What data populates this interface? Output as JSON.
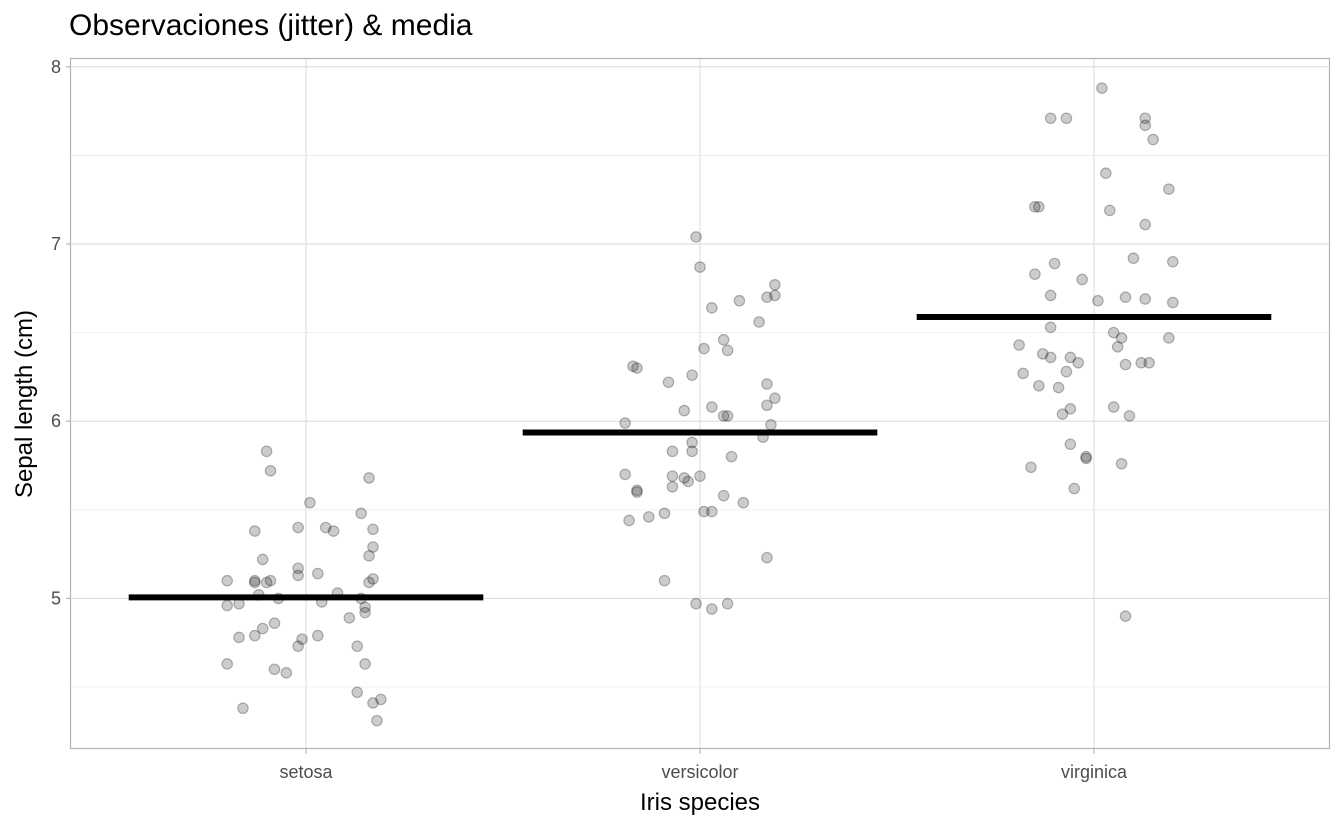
{
  "chart_data": {
    "type": "scatter",
    "title": "Observaciones (jitter) & media",
    "xlabel": "Iris species",
    "ylabel": "Sepal length (cm)",
    "categories": [
      "setosa",
      "versicolor",
      "virginica"
    ],
    "ylim": [
      4.15,
      8.05
    ],
    "yticks": [
      "5",
      "6",
      "7",
      "8"
    ],
    "ytick_values": [
      5,
      6,
      7,
      8
    ],
    "y_minor_gridlines": [
      4.5,
      5.5,
      6.5,
      7.5
    ],
    "grid": true,
    "jitter_width": 0.2,
    "colors": {
      "points": "#000000",
      "mean": "#000000",
      "grid": "#dedede",
      "border": "#b3b3b3"
    },
    "series": [
      {
        "name": "observations",
        "points": [
          {
            "category": "setosa",
            "jitter": -0.2,
            "y": 5.1
          },
          {
            "category": "setosa",
            "jitter": 0.17,
            "y": 5.11
          },
          {
            "category": "setosa",
            "jitter": -0.13,
            "y": 5.1
          },
          {
            "category": "setosa",
            "jitter": -0.09,
            "y": 5.1
          },
          {
            "category": "setosa",
            "jitter": -0.02,
            "y": 5.17
          },
          {
            "category": "setosa",
            "jitter": -0.12,
            "y": 5.02
          },
          {
            "category": "setosa",
            "jitter": -0.17,
            "y": 4.97
          },
          {
            "category": "setosa",
            "jitter": 0.04,
            "y": 4.98
          },
          {
            "category": "setosa",
            "jitter": 0.08,
            "y": 5.03
          },
          {
            "category": "setosa",
            "jitter": 0.14,
            "y": 5.0
          },
          {
            "category": "setosa",
            "jitter": 0.15,
            "y": 4.92
          },
          {
            "category": "setosa",
            "jitter": 0.15,
            "y": 4.95
          },
          {
            "category": "setosa",
            "jitter": 0.16,
            "y": 5.09
          },
          {
            "category": "setosa",
            "jitter": -0.07,
            "y": 5.0
          },
          {
            "category": "setosa",
            "jitter": 0.11,
            "y": 4.89
          },
          {
            "category": "setosa",
            "jitter": -0.08,
            "y": 4.86
          },
          {
            "category": "setosa",
            "jitter": -0.11,
            "y": 4.83
          },
          {
            "category": "setosa",
            "jitter": -0.13,
            "y": 4.79
          },
          {
            "category": "setosa",
            "jitter": -0.17,
            "y": 4.78
          },
          {
            "category": "setosa",
            "jitter": 0.03,
            "y": 4.79
          },
          {
            "category": "setosa",
            "jitter": -0.01,
            "y": 4.77
          },
          {
            "category": "setosa",
            "jitter": -0.02,
            "y": 4.73
          },
          {
            "category": "setosa",
            "jitter": 0.13,
            "y": 4.73
          },
          {
            "category": "setosa",
            "jitter": -0.2,
            "y": 4.96
          },
          {
            "category": "setosa",
            "jitter": -0.2,
            "y": 4.63
          },
          {
            "category": "setosa",
            "jitter": 0.15,
            "y": 4.63
          },
          {
            "category": "setosa",
            "jitter": -0.08,
            "y": 4.6
          },
          {
            "category": "setosa",
            "jitter": -0.05,
            "y": 4.58
          },
          {
            "category": "setosa",
            "jitter": 0.13,
            "y": 4.47
          },
          {
            "category": "setosa",
            "jitter": 0.17,
            "y": 4.41
          },
          {
            "category": "setosa",
            "jitter": 0.19,
            "y": 4.43
          },
          {
            "category": "setosa",
            "jitter": -0.16,
            "y": 4.38
          },
          {
            "category": "setosa",
            "jitter": 0.18,
            "y": 4.31
          },
          {
            "category": "setosa",
            "jitter": -0.13,
            "y": 5.38
          },
          {
            "category": "setosa",
            "jitter": -0.02,
            "y": 5.4
          },
          {
            "category": "setosa",
            "jitter": 0.05,
            "y": 5.4
          },
          {
            "category": "setosa",
            "jitter": 0.07,
            "y": 5.38
          },
          {
            "category": "setosa",
            "jitter": 0.17,
            "y": 5.39
          },
          {
            "category": "setosa",
            "jitter": 0.01,
            "y": 5.54
          },
          {
            "category": "setosa",
            "jitter": 0.14,
            "y": 5.48
          },
          {
            "category": "setosa",
            "jitter": -0.11,
            "y": 5.22
          },
          {
            "category": "setosa",
            "jitter": 0.17,
            "y": 5.29
          },
          {
            "category": "setosa",
            "jitter": 0.16,
            "y": 5.24
          },
          {
            "category": "setosa",
            "jitter": -0.1,
            "y": 5.83
          },
          {
            "category": "setosa",
            "jitter": -0.09,
            "y": 5.72
          },
          {
            "category": "setosa",
            "jitter": 0.16,
            "y": 5.68
          },
          {
            "category": "setosa",
            "jitter": -0.02,
            "y": 5.13
          },
          {
            "category": "setosa",
            "jitter": 0.03,
            "y": 5.14
          },
          {
            "category": "setosa",
            "jitter": -0.13,
            "y": 5.09
          },
          {
            "category": "setosa",
            "jitter": -0.1,
            "y": 5.09
          },
          {
            "category": "versicolor",
            "jitter": -0.01,
            "y": 7.04
          },
          {
            "category": "versicolor",
            "jitter": 0.0,
            "y": 6.87
          },
          {
            "category": "versicolor",
            "jitter": 0.03,
            "y": 6.64
          },
          {
            "category": "versicolor",
            "jitter": 0.1,
            "y": 6.68
          },
          {
            "category": "versicolor",
            "jitter": 0.17,
            "y": 6.7
          },
          {
            "category": "versicolor",
            "jitter": 0.19,
            "y": 6.77
          },
          {
            "category": "versicolor",
            "jitter": 0.19,
            "y": 6.71
          },
          {
            "category": "versicolor",
            "jitter": 0.15,
            "y": 6.56
          },
          {
            "category": "versicolor",
            "jitter": 0.06,
            "y": 6.46
          },
          {
            "category": "versicolor",
            "jitter": 0.07,
            "y": 6.4
          },
          {
            "category": "versicolor",
            "jitter": 0.01,
            "y": 6.41
          },
          {
            "category": "versicolor",
            "jitter": -0.02,
            "y": 6.26
          },
          {
            "category": "versicolor",
            "jitter": -0.08,
            "y": 6.22
          },
          {
            "category": "versicolor",
            "jitter": -0.17,
            "y": 6.31
          },
          {
            "category": "versicolor",
            "jitter": -0.16,
            "y": 6.3
          },
          {
            "category": "versicolor",
            "jitter": 0.17,
            "y": 6.21
          },
          {
            "category": "versicolor",
            "jitter": 0.19,
            "y": 6.13
          },
          {
            "category": "versicolor",
            "jitter": 0.17,
            "y": 6.09
          },
          {
            "category": "versicolor",
            "jitter": 0.03,
            "y": 6.08
          },
          {
            "category": "versicolor",
            "jitter": 0.06,
            "y": 6.03
          },
          {
            "category": "versicolor",
            "jitter": 0.07,
            "y": 6.03
          },
          {
            "category": "versicolor",
            "jitter": -0.04,
            "y": 6.06
          },
          {
            "category": "versicolor",
            "jitter": -0.19,
            "y": 5.99
          },
          {
            "category": "versicolor",
            "jitter": 0.18,
            "y": 5.98
          },
          {
            "category": "versicolor",
            "jitter": 0.16,
            "y": 5.91
          },
          {
            "category": "versicolor",
            "jitter": -0.02,
            "y": 5.88
          },
          {
            "category": "versicolor",
            "jitter": -0.02,
            "y": 5.83
          },
          {
            "category": "versicolor",
            "jitter": -0.07,
            "y": 5.83
          },
          {
            "category": "versicolor",
            "jitter": 0.08,
            "y": 5.8
          },
          {
            "category": "versicolor",
            "jitter": -0.19,
            "y": 5.7
          },
          {
            "category": "versicolor",
            "jitter": -0.07,
            "y": 5.69
          },
          {
            "category": "versicolor",
            "jitter": -0.04,
            "y": 5.68
          },
          {
            "category": "versicolor",
            "jitter": -0.03,
            "y": 5.66
          },
          {
            "category": "versicolor",
            "jitter": 0.0,
            "y": 5.69
          },
          {
            "category": "versicolor",
            "jitter": -0.07,
            "y": 5.63
          },
          {
            "category": "versicolor",
            "jitter": -0.16,
            "y": 5.61
          },
          {
            "category": "versicolor",
            "jitter": -0.16,
            "y": 5.6
          },
          {
            "category": "versicolor",
            "jitter": 0.06,
            "y": 5.58
          },
          {
            "category": "versicolor",
            "jitter": 0.11,
            "y": 5.54
          },
          {
            "category": "versicolor",
            "jitter": -0.09,
            "y": 5.48
          },
          {
            "category": "versicolor",
            "jitter": -0.13,
            "y": 5.46
          },
          {
            "category": "versicolor",
            "jitter": -0.18,
            "y": 5.44
          },
          {
            "category": "versicolor",
            "jitter": 0.01,
            "y": 5.49
          },
          {
            "category": "versicolor",
            "jitter": 0.03,
            "y": 5.49
          },
          {
            "category": "versicolor",
            "jitter": 0.17,
            "y": 5.23
          },
          {
            "category": "versicolor",
            "jitter": -0.09,
            "y": 5.1
          },
          {
            "category": "versicolor",
            "jitter": -0.01,
            "y": 4.97
          },
          {
            "category": "versicolor",
            "jitter": 0.03,
            "y": 4.94
          },
          {
            "category": "versicolor",
            "jitter": 0.07,
            "y": 4.97
          },
          {
            "category": "virginica",
            "jitter": 0.02,
            "y": 7.88
          },
          {
            "category": "virginica",
            "jitter": -0.11,
            "y": 7.71
          },
          {
            "category": "virginica",
            "jitter": -0.07,
            "y": 7.71
          },
          {
            "category": "virginica",
            "jitter": 0.13,
            "y": 7.71
          },
          {
            "category": "virginica",
            "jitter": 0.13,
            "y": 7.67
          },
          {
            "category": "virginica",
            "jitter": 0.15,
            "y": 7.59
          },
          {
            "category": "virginica",
            "jitter": 0.03,
            "y": 7.4
          },
          {
            "category": "virginica",
            "jitter": 0.19,
            "y": 7.31
          },
          {
            "category": "virginica",
            "jitter": -0.15,
            "y": 7.21
          },
          {
            "category": "virginica",
            "jitter": -0.14,
            "y": 7.21
          },
          {
            "category": "virginica",
            "jitter": 0.04,
            "y": 7.19
          },
          {
            "category": "virginica",
            "jitter": 0.13,
            "y": 7.11
          },
          {
            "category": "virginica",
            "jitter": 0.1,
            "y": 6.92
          },
          {
            "category": "virginica",
            "jitter": 0.2,
            "y": 6.9
          },
          {
            "category": "virginica",
            "jitter": -0.1,
            "y": 6.89
          },
          {
            "category": "virginica",
            "jitter": -0.15,
            "y": 6.83
          },
          {
            "category": "virginica",
            "jitter": -0.03,
            "y": 6.8
          },
          {
            "category": "virginica",
            "jitter": -0.11,
            "y": 6.71
          },
          {
            "category": "virginica",
            "jitter": 0.01,
            "y": 6.68
          },
          {
            "category": "virginica",
            "jitter": 0.08,
            "y": 6.7
          },
          {
            "category": "virginica",
            "jitter": 0.13,
            "y": 6.69
          },
          {
            "category": "virginica",
            "jitter": 0.2,
            "y": 6.67
          },
          {
            "category": "virginica",
            "jitter": -0.19,
            "y": 6.43
          },
          {
            "category": "virginica",
            "jitter": -0.11,
            "y": 6.53
          },
          {
            "category": "virginica",
            "jitter": 0.05,
            "y": 6.5
          },
          {
            "category": "virginica",
            "jitter": 0.07,
            "y": 6.47
          },
          {
            "category": "virginica",
            "jitter": 0.06,
            "y": 6.42
          },
          {
            "category": "virginica",
            "jitter": 0.19,
            "y": 6.47
          },
          {
            "category": "virginica",
            "jitter": -0.13,
            "y": 6.38
          },
          {
            "category": "virginica",
            "jitter": -0.11,
            "y": 6.36
          },
          {
            "category": "virginica",
            "jitter": -0.06,
            "y": 6.36
          },
          {
            "category": "virginica",
            "jitter": -0.04,
            "y": 6.33
          },
          {
            "category": "virginica",
            "jitter": 0.08,
            "y": 6.32
          },
          {
            "category": "virginica",
            "jitter": 0.12,
            "y": 6.33
          },
          {
            "category": "virginica",
            "jitter": 0.14,
            "y": 6.33
          },
          {
            "category": "virginica",
            "jitter": -0.07,
            "y": 6.28
          },
          {
            "category": "virginica",
            "jitter": -0.18,
            "y": 6.27
          },
          {
            "category": "virginica",
            "jitter": -0.14,
            "y": 6.2
          },
          {
            "category": "virginica",
            "jitter": -0.09,
            "y": 6.19
          },
          {
            "category": "virginica",
            "jitter": -0.06,
            "y": 6.07
          },
          {
            "category": "virginica",
            "jitter": -0.08,
            "y": 6.04
          },
          {
            "category": "virginica",
            "jitter": 0.05,
            "y": 6.08
          },
          {
            "category": "virginica",
            "jitter": 0.09,
            "y": 6.03
          },
          {
            "category": "virginica",
            "jitter": -0.06,
            "y": 5.87
          },
          {
            "category": "virginica",
            "jitter": -0.02,
            "y": 5.8
          },
          {
            "category": "virginica",
            "jitter": -0.02,
            "y": 5.79
          },
          {
            "category": "virginica",
            "jitter": -0.16,
            "y": 5.74
          },
          {
            "category": "virginica",
            "jitter": 0.07,
            "y": 5.76
          },
          {
            "category": "virginica",
            "jitter": -0.05,
            "y": 5.62
          },
          {
            "category": "virginica",
            "jitter": 0.08,
            "y": 4.9
          }
        ]
      },
      {
        "name": "mean",
        "values": [
          5.006,
          5.936,
          6.588
        ]
      }
    ]
  }
}
